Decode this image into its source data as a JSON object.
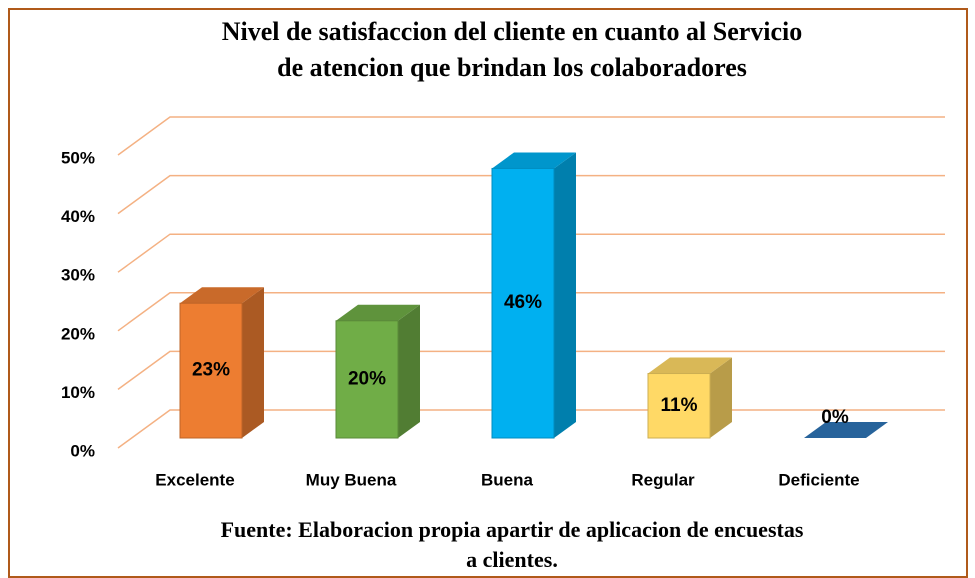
{
  "chart_data": {
    "type": "bar3d",
    "title": "Nivel de satisfaccion del cliente en cuanto al Servicio de atencion que brindan los colaboradores",
    "categories": [
      "Excelente",
      "Muy Buena",
      "Buena",
      "Regular",
      "Deficiente"
    ],
    "values": [
      23,
      20,
      46,
      11,
      0
    ],
    "value_labels": [
      "23%",
      "20%",
      "46%",
      "11%",
      "0%"
    ],
    "colors": [
      "#ed7d31",
      "#70ad47",
      "#00b0f0",
      "#ffd966",
      "#2e75b6"
    ],
    "ylim": [
      0,
      50
    ],
    "yticks": [
      {
        "value": 0,
        "label": "0%"
      },
      {
        "value": 10,
        "label": "10%"
      },
      {
        "value": 20,
        "label": "20%"
      },
      {
        "value": 30,
        "label": "30%"
      },
      {
        "value": 40,
        "label": "40%"
      },
      {
        "value": 50,
        "label": "50%"
      }
    ],
    "grid": true,
    "grid_color": "#f4b183",
    "note": "Fuente: Elaboracion propia apartir de aplicacion de encuestas a clientes."
  }
}
